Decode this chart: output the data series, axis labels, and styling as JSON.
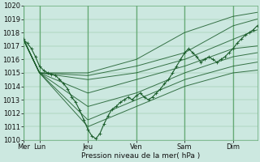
{
  "xlabel": "Pression niveau de la mer( hPa )",
  "ylim": [
    1010,
    1020
  ],
  "yticks": [
    1010,
    1011,
    1012,
    1013,
    1014,
    1015,
    1016,
    1017,
    1018,
    1019,
    1020
  ],
  "day_labels": [
    "Mer",
    "Lun",
    "Jeu",
    "Ven",
    "Sam",
    "Dim"
  ],
  "day_positions": [
    0,
    16,
    64,
    112,
    160,
    208
  ],
  "bg_color": "#cce8e0",
  "grid_color": "#66aa77",
  "line_color": "#1a5c2a",
  "total_hours": 232,
  "series": [
    {
      "x": [
        0,
        16,
        64,
        112,
        160,
        208,
        232
      ],
      "y": [
        1017.5,
        1015.0,
        1015.0,
        1016.0,
        1018.0,
        1019.2,
        1019.5
      ]
    },
    {
      "x": [
        0,
        16,
        64,
        112,
        160,
        208,
        232
      ],
      "y": [
        1017.5,
        1015.0,
        1014.8,
        1015.5,
        1016.5,
        1018.5,
        1019.0
      ]
    },
    {
      "x": [
        0,
        16,
        64,
        112,
        160,
        208,
        232
      ],
      "y": [
        1017.5,
        1015.0,
        1014.5,
        1015.0,
        1016.0,
        1017.5,
        1018.2
      ]
    },
    {
      "x": [
        0,
        16,
        64,
        112,
        160,
        208,
        232
      ],
      "y": [
        1017.5,
        1015.0,
        1013.5,
        1014.5,
        1015.5,
        1016.8,
        1017.0
      ]
    },
    {
      "x": [
        0,
        16,
        64,
        112,
        160,
        208,
        232
      ],
      "y": [
        1017.5,
        1015.0,
        1012.5,
        1013.5,
        1015.0,
        1016.2,
        1016.5
      ]
    },
    {
      "x": [
        0,
        16,
        64,
        112,
        160,
        208,
        232
      ],
      "y": [
        1017.5,
        1015.0,
        1011.5,
        1013.0,
        1014.5,
        1015.5,
        1015.8
      ]
    },
    {
      "x": [
        0,
        16,
        64,
        112,
        160,
        208,
        232
      ],
      "y": [
        1017.5,
        1015.0,
        1011.0,
        1012.5,
        1014.0,
        1015.0,
        1015.2
      ]
    }
  ],
  "detail_x": [
    0,
    4,
    8,
    12,
    16,
    20,
    24,
    28,
    32,
    36,
    40,
    44,
    48,
    52,
    56,
    60,
    64,
    68,
    72,
    76,
    80,
    84,
    88,
    92,
    96,
    100,
    104,
    108,
    112,
    116,
    120,
    124,
    128,
    132,
    136,
    140,
    144,
    148,
    152,
    156,
    160,
    164,
    168,
    172,
    176,
    180,
    184,
    188,
    192,
    196,
    200,
    204,
    208,
    212,
    216,
    220,
    224,
    228,
    232
  ],
  "detail_y": [
    1017.5,
    1017.2,
    1016.8,
    1016.2,
    1015.5,
    1015.2,
    1015.0,
    1014.9,
    1014.8,
    1014.5,
    1014.2,
    1013.8,
    1013.2,
    1012.8,
    1012.2,
    1011.5,
    1010.8,
    1010.3,
    1010.1,
    1010.5,
    1011.2,
    1011.8,
    1012.3,
    1012.5,
    1012.8,
    1013.0,
    1013.2,
    1013.0,
    1013.3,
    1013.5,
    1013.2,
    1013.0,
    1013.2,
    1013.5,
    1013.8,
    1014.2,
    1014.5,
    1015.0,
    1015.5,
    1016.0,
    1016.5,
    1016.8,
    1016.5,
    1016.2,
    1015.8,
    1016.0,
    1016.2,
    1016.0,
    1015.8,
    1016.0,
    1016.2,
    1016.5,
    1016.8,
    1017.2,
    1017.5,
    1017.8,
    1018.0,
    1018.2,
    1018.5
  ]
}
